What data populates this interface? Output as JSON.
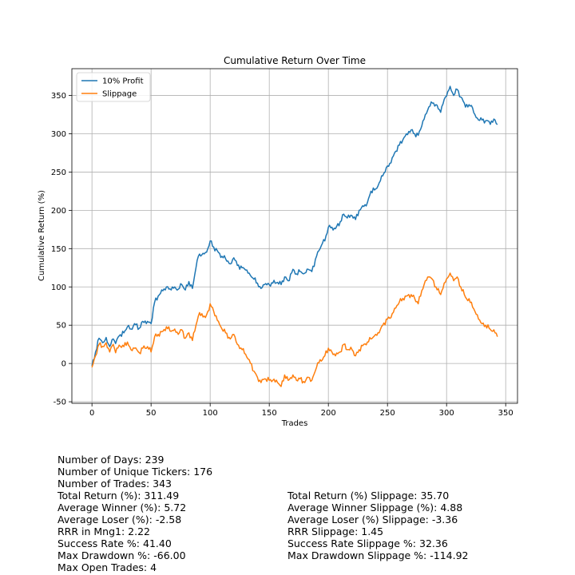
{
  "chart_data": {
    "type": "line",
    "title": "Cumulative Return Over Time",
    "xlabel": "Trades",
    "ylabel": "Cumulative Return (%)",
    "xlim": [
      -17,
      360
    ],
    "ylim": [
      -52,
      385
    ],
    "xticks": [
      0,
      50,
      100,
      150,
      200,
      250,
      300,
      350
    ],
    "yticks": [
      -50,
      0,
      50,
      100,
      150,
      200,
      250,
      300,
      350
    ],
    "grid": true,
    "legend": "top-left",
    "series": [
      {
        "name": "10% Profit",
        "color": "#1f77b4",
        "keypoints": [
          [
            0,
            -3
          ],
          [
            3,
            15
          ],
          [
            6,
            33
          ],
          [
            10,
            28
          ],
          [
            12,
            34
          ],
          [
            15,
            22
          ],
          [
            18,
            32
          ],
          [
            20,
            26
          ],
          [
            23,
            36
          ],
          [
            27,
            40
          ],
          [
            30,
            48
          ],
          [
            33,
            45
          ],
          [
            36,
            52
          ],
          [
            40,
            46
          ],
          [
            43,
            55
          ],
          [
            47,
            55
          ],
          [
            50,
            52
          ],
          [
            53,
            80
          ],
          [
            56,
            88
          ],
          [
            60,
            95
          ],
          [
            63,
            100
          ],
          [
            67,
            96
          ],
          [
            70,
            100
          ],
          [
            73,
            97
          ],
          [
            76,
            103
          ],
          [
            79,
            96
          ],
          [
            82,
            107
          ],
          [
            85,
            98
          ],
          [
            88,
            125
          ],
          [
            90,
            140
          ],
          [
            93,
            142
          ],
          [
            96,
            145
          ],
          [
            98,
            150
          ],
          [
            100,
            160
          ],
          [
            103,
            152
          ],
          [
            107,
            145
          ],
          [
            110,
            140
          ],
          [
            113,
            137
          ],
          [
            117,
            130
          ],
          [
            120,
            138
          ],
          [
            123,
            128
          ],
          [
            127,
            125
          ],
          [
            130,
            122
          ],
          [
            133,
            118
          ],
          [
            137,
            110
          ],
          [
            140,
            105
          ],
          [
            143,
            98
          ],
          [
            146,
            103
          ],
          [
            150,
            103
          ],
          [
            153,
            105
          ],
          [
            157,
            106
          ],
          [
            160,
            103
          ],
          [
            163,
            113
          ],
          [
            166,
            108
          ],
          [
            170,
            123
          ],
          [
            173,
            117
          ],
          [
            176,
            120
          ],
          [
            180,
            118
          ],
          [
            183,
            123
          ],
          [
            186,
            120
          ],
          [
            190,
            140
          ],
          [
            193,
            150
          ],
          [
            195,
            157
          ],
          [
            197,
            160
          ],
          [
            200,
            178
          ],
          [
            203,
            178
          ],
          [
            206,
            176
          ],
          [
            210,
            185
          ],
          [
            213,
            195
          ],
          [
            216,
            190
          ],
          [
            220,
            193
          ],
          [
            223,
            188
          ],
          [
            226,
            200
          ],
          [
            230,
            205
          ],
          [
            233,
            210
          ],
          [
            236,
            225
          ],
          [
            240,
            228
          ],
          [
            243,
            236
          ],
          [
            246,
            245
          ],
          [
            250,
            258
          ],
          [
            253,
            262
          ],
          [
            256,
            275
          ],
          [
            260,
            285
          ],
          [
            263,
            292
          ],
          [
            266,
            300
          ],
          [
            270,
            305
          ],
          [
            273,
            300
          ],
          [
            276,
            298
          ],
          [
            279,
            310
          ],
          [
            282,
            325
          ],
          [
            285,
            335
          ],
          [
            288,
            340
          ],
          [
            291,
            338
          ],
          [
            295,
            328
          ],
          [
            298,
            345
          ],
          [
            301,
            355
          ],
          [
            303,
            362
          ],
          [
            306,
            350
          ],
          [
            309,
            358
          ],
          [
            312,
            348
          ],
          [
            315,
            340
          ],
          [
            318,
            335
          ],
          [
            321,
            337
          ],
          [
            324,
            325
          ],
          [
            327,
            318
          ],
          [
            330,
            318
          ],
          [
            333,
            317
          ],
          [
            336,
            316
          ],
          [
            339,
            315
          ],
          [
            341,
            318
          ],
          [
            343,
            312
          ]
        ]
      },
      {
        "name": "Slippage",
        "color": "#ff7f0e",
        "keypoints": [
          [
            0,
            -5
          ],
          [
            3,
            10
          ],
          [
            6,
            25
          ],
          [
            10,
            22
          ],
          [
            12,
            27
          ],
          [
            15,
            15
          ],
          [
            18,
            25
          ],
          [
            20,
            14
          ],
          [
            23,
            24
          ],
          [
            27,
            22
          ],
          [
            30,
            28
          ],
          [
            33,
            18
          ],
          [
            36,
            20
          ],
          [
            40,
            14
          ],
          [
            43,
            20
          ],
          [
            47,
            22
          ],
          [
            50,
            15
          ],
          [
            53,
            35
          ],
          [
            56,
            38
          ],
          [
            60,
            42
          ],
          [
            63,
            48
          ],
          [
            67,
            42
          ],
          [
            70,
            45
          ],
          [
            73,
            38
          ],
          [
            76,
            44
          ],
          [
            79,
            33
          ],
          [
            82,
            40
          ],
          [
            85,
            30
          ],
          [
            88,
            50
          ],
          [
            90,
            62
          ],
          [
            93,
            65
          ],
          [
            96,
            60
          ],
          [
            98,
            68
          ],
          [
            100,
            78
          ],
          [
            103,
            68
          ],
          [
            107,
            55
          ],
          [
            110,
            45
          ],
          [
            113,
            40
          ],
          [
            117,
            32
          ],
          [
            120,
            38
          ],
          [
            123,
            25
          ],
          [
            127,
            18
          ],
          [
            130,
            12
          ],
          [
            133,
            5
          ],
          [
            137,
            -10
          ],
          [
            140,
            -18
          ],
          [
            143,
            -25
          ],
          [
            146,
            -20
          ],
          [
            150,
            -22
          ],
          [
            153,
            -22
          ],
          [
            157,
            -25
          ],
          [
            160,
            -30
          ],
          [
            163,
            -15
          ],
          [
            166,
            -22
          ],
          [
            170,
            -15
          ],
          [
            173,
            -22
          ],
          [
            176,
            -20
          ],
          [
            180,
            -25
          ],
          [
            183,
            -18
          ],
          [
            186,
            -22
          ],
          [
            190,
            -5
          ],
          [
            193,
            5
          ],
          [
            195,
            5
          ],
          [
            197,
            10
          ],
          [
            200,
            20
          ],
          [
            203,
            15
          ],
          [
            206,
            10
          ],
          [
            210,
            15
          ],
          [
            213,
            25
          ],
          [
            216,
            18
          ],
          [
            220,
            18
          ],
          [
            223,
            10
          ],
          [
            226,
            18
          ],
          [
            230,
            25
          ],
          [
            233,
            28
          ],
          [
            236,
            32
          ],
          [
            240,
            38
          ],
          [
            243,
            40
          ],
          [
            246,
            50
          ],
          [
            250,
            58
          ],
          [
            253,
            60
          ],
          [
            256,
            72
          ],
          [
            260,
            80
          ],
          [
            263,
            85
          ],
          [
            266,
            88
          ],
          [
            270,
            90
          ],
          [
            273,
            85
          ],
          [
            276,
            78
          ],
          [
            279,
            95
          ],
          [
            282,
            108
          ],
          [
            285,
            113
          ],
          [
            288,
            110
          ],
          [
            291,
            100
          ],
          [
            295,
            90
          ],
          [
            298,
            105
          ],
          [
            301,
            112
          ],
          [
            303,
            118
          ],
          [
            306,
            108
          ],
          [
            309,
            113
          ],
          [
            312,
            100
          ],
          [
            315,
            90
          ],
          [
            318,
            82
          ],
          [
            321,
            80
          ],
          [
            324,
            68
          ],
          [
            327,
            58
          ],
          [
            330,
            52
          ],
          [
            333,
            50
          ],
          [
            336,
            46
          ],
          [
            339,
            42
          ],
          [
            341,
            40
          ],
          [
            343,
            35
          ]
        ]
      }
    ]
  },
  "stats": {
    "left": [
      "Number of Days: 239",
      "Number of Unique Tickers: 176",
      "Number of Trades: 343",
      "Total Return (%): 311.49",
      "Average Winner (%): 5.72",
      "Average Loser (%): -2.58",
      "RRR in Mng1: 2.22",
      "Success Rate %: 41.40",
      "Max Drawdown %: -66.00",
      "Max Open Trades: 4"
    ],
    "right": [
      "Total Return (%) Slippage: 35.70",
      "Average Winner Slippage (%): 4.88",
      "Average Loser (%) Slippage: -3.36",
      "RRR Slippage: 1.45",
      "Success Rate Slippage %: 32.36",
      "Max Drawdown Slippage %: -114.92"
    ]
  }
}
